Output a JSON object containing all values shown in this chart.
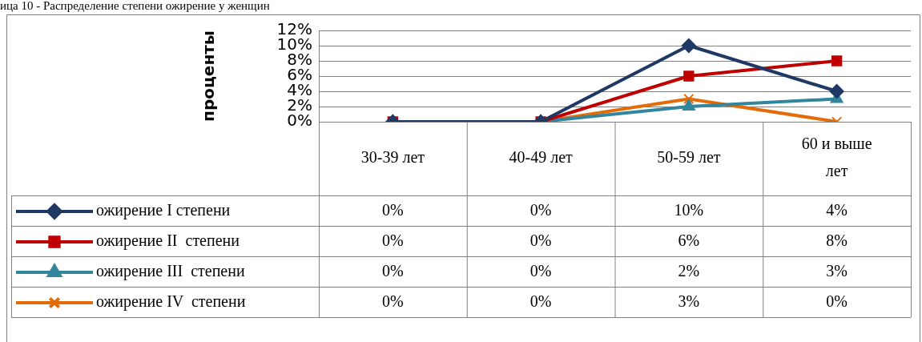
{
  "chart_data": {
    "type": "line",
    "title": "ица 10 - Распределение степени ожирение у женщин",
    "ylabel": "проценты",
    "categories": [
      "30-39 лет",
      "40-49 лет",
      "50-59 лет",
      "60 и выше лет"
    ],
    "ylim": [
      0,
      12
    ],
    "yticks": [
      {
        "value": 0,
        "label": "0%"
      },
      {
        "value": 2,
        "label": "2%"
      },
      {
        "value": 4,
        "label": "4%"
      },
      {
        "value": 6,
        "label": "6%"
      },
      {
        "value": 8,
        "label": "8%"
      },
      {
        "value": 10,
        "label": "10%"
      },
      {
        "value": 12,
        "label": "12%"
      }
    ],
    "grid": "y",
    "legend": "bottom left",
    "line_style": "solid",
    "series": [
      {
        "name": "ожирение I степени",
        "color": "#1f3864",
        "marker": "diamond",
        "values": [
          0,
          0,
          10,
          4
        ],
        "value_labels": [
          "0%",
          "0%",
          "10%",
          "4%"
        ]
      },
      {
        "name": "ожирение II  степени",
        "color": "#c00000",
        "marker": "square",
        "values": [
          0,
          0,
          6,
          8
        ],
        "value_labels": [
          "0%",
          "0%",
          "6%",
          "8%"
        ]
      },
      {
        "name": "ожирение III  степени",
        "color": "#31859c",
        "marker": "triangle",
        "values": [
          0,
          0,
          2,
          3
        ],
        "value_labels": [
          "0%",
          "0%",
          "2%",
          "3%"
        ]
      },
      {
        "name": "ожирение IV  степени",
        "color": "#e36c09",
        "marker": "cross",
        "values": [
          0,
          0,
          3,
          0
        ],
        "value_labels": [
          "0%",
          "0%",
          "3%",
          "0%"
        ]
      }
    ]
  }
}
